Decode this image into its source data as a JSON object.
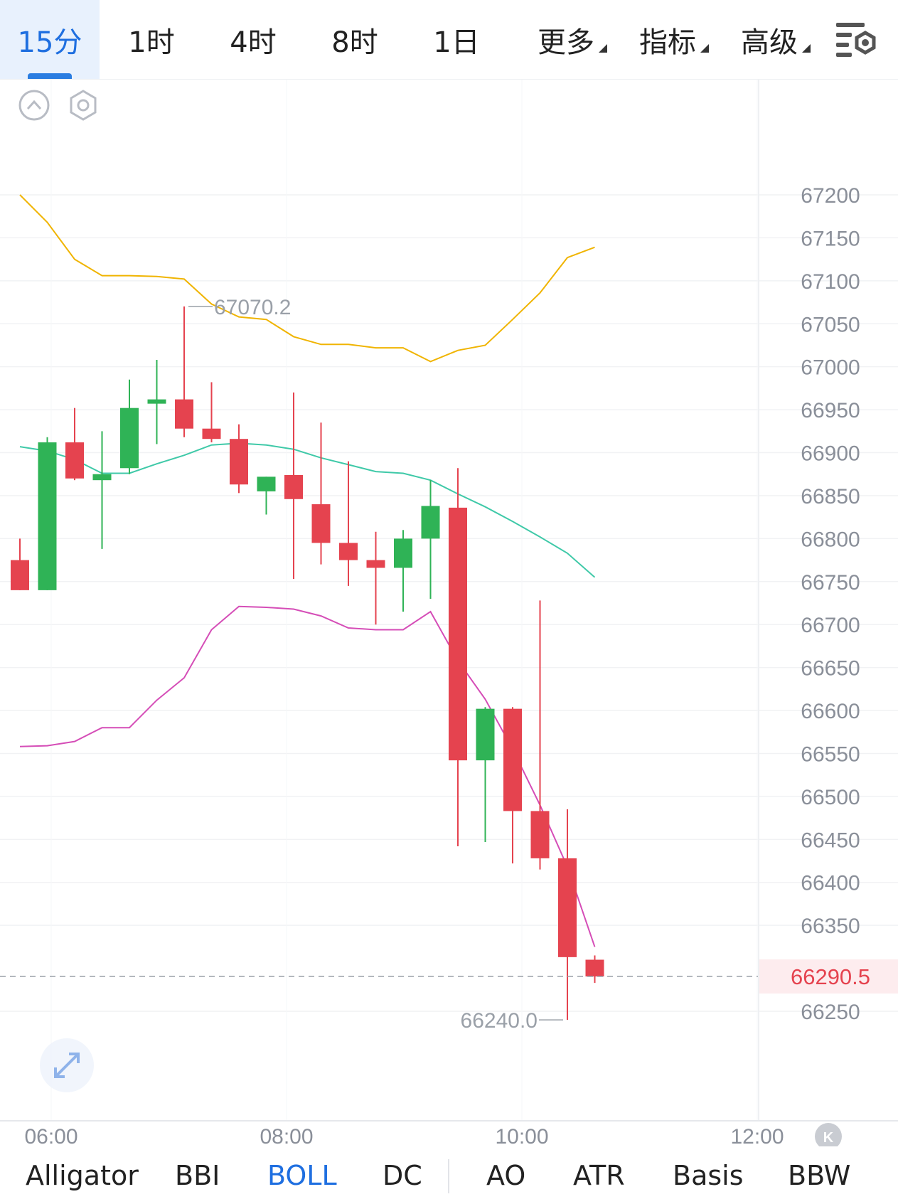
{
  "timeframes": [
    {
      "label": "15分",
      "active": true
    },
    {
      "label": "1时",
      "active": false
    },
    {
      "label": "4时",
      "active": false
    },
    {
      "label": "8时",
      "active": false
    },
    {
      "label": "1日",
      "active": false
    }
  ],
  "dropdowns": [
    {
      "label": "更多"
    },
    {
      "label": "指标"
    },
    {
      "label": "高级"
    }
  ],
  "indicator_tabs": [
    {
      "label": "Alligator",
      "active": false
    },
    {
      "label": "BBI",
      "active": false
    },
    {
      "label": "BOLL",
      "active": true
    },
    {
      "label": "DC",
      "active": false
    },
    {
      "label": "AO",
      "active": false
    },
    {
      "label": "ATR",
      "active": false
    },
    {
      "label": "Basis",
      "active": false
    },
    {
      "label": "BBW",
      "active": false
    }
  ],
  "colors": {
    "up": "#2fb356",
    "down": "#e5434f",
    "boll_upper": "#f0b400",
    "boll_mid": "#3fc9a8",
    "boll_lower": "#d54db7",
    "accent": "#1f6fe0",
    "price_tag": "#e5434f"
  },
  "icons": [
    "collapse-up-icon",
    "hexagon-settings-icon",
    "settings-list-icon",
    "expand-arrows-icon",
    "k-logo-icon"
  ],
  "chart_data": {
    "type": "candlestick",
    "interval": "15m",
    "y_axis": {
      "ticks": [
        67200,
        67150,
        67100,
        67050,
        67000,
        66950,
        66900,
        66850,
        66800,
        66750,
        66700,
        66650,
        66600,
        66550,
        66500,
        66450,
        66400,
        66350,
        66250
      ],
      "range": [
        66220,
        67240
      ]
    },
    "x_axis": {
      "ticks": [
        "06:00",
        "08:00",
        "10:00",
        "12:00"
      ]
    },
    "current_price": "66290.5",
    "high_marker": {
      "label": "67070.2",
      "value": 67070.2
    },
    "low_marker": {
      "label": "66240.0",
      "value": 66240.0
    },
    "candles": [
      {
        "o": 66775,
        "h": 66800,
        "l": 66740,
        "c": 66740
      },
      {
        "o": 66740,
        "h": 66918,
        "l": 66740,
        "c": 66912
      },
      {
        "o": 66912,
        "h": 66952,
        "l": 66868,
        "c": 66870
      },
      {
        "o": 66868,
        "h": 66925,
        "l": 66788,
        "c": 66875
      },
      {
        "o": 66882,
        "h": 66985,
        "l": 66875,
        "c": 66952
      },
      {
        "o": 66957,
        "h": 67008,
        "l": 66910,
        "c": 66962
      },
      {
        "o": 66962,
        "h": 67070.2,
        "l": 66918,
        "c": 66928
      },
      {
        "o": 66928,
        "h": 66982,
        "l": 66912,
        "c": 66916
      },
      {
        "o": 66916,
        "h": 66933,
        "l": 66853,
        "c": 66863
      },
      {
        "o": 66855,
        "h": 66872,
        "l": 66828,
        "c": 66872
      },
      {
        "o": 66874,
        "h": 66970,
        "l": 66753,
        "c": 66846
      },
      {
        "o": 66840,
        "h": 66935,
        "l": 66770,
        "c": 66795
      },
      {
        "o": 66795,
        "h": 66890,
        "l": 66745,
        "c": 66775
      },
      {
        "o": 66775,
        "h": 66808,
        "l": 66700,
        "c": 66766
      },
      {
        "o": 66766,
        "h": 66810,
        "l": 66715,
        "c": 66800
      },
      {
        "o": 66800,
        "h": 66868,
        "l": 66730,
        "c": 66838
      },
      {
        "o": 66836,
        "h": 66882,
        "l": 66442,
        "c": 66542
      },
      {
        "o": 66542,
        "h": 66604,
        "l": 66447,
        "c": 66602
      },
      {
        "o": 66602,
        "h": 66604,
        "l": 66422,
        "c": 66483
      },
      {
        "o": 66483,
        "h": 66728,
        "l": 66415,
        "c": 66428
      },
      {
        "o": 66428,
        "h": 66485,
        "l": 66240.0,
        "c": 66313
      },
      {
        "o": 66310,
        "h": 66315,
        "l": 66283,
        "c": 66290.5
      }
    ],
    "series": [
      {
        "values": [
          67200,
          67168,
          67125,
          67106,
          67106,
          67105,
          67102,
          67073,
          67058,
          67055,
          67035,
          67026,
          67026,
          67022,
          67022,
          67006,
          67019,
          67025,
          67055,
          67086,
          67127,
          67139
        ]
      },
      {
        "values": [
          66907,
          66902,
          66892,
          66876,
          66876,
          66887,
          66897,
          66909,
          66911,
          66909,
          66904,
          66894,
          66886,
          66878,
          66876,
          66868,
          66852,
          66837,
          66820,
          66802,
          66783,
          66755
        ]
      },
      {
        "values": [
          66558,
          66559,
          66564,
          66580,
          66580,
          66612,
          66638,
          66694,
          66721,
          66720,
          66718,
          66710,
          66696,
          66694,
          66694,
          66715,
          66658,
          66613,
          66555,
          66490,
          66418,
          66325
        ]
      }
    ]
  }
}
